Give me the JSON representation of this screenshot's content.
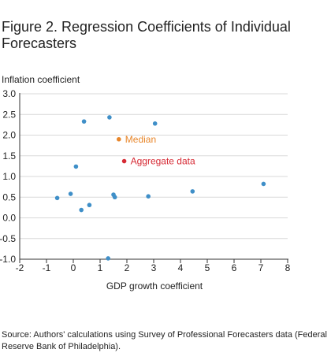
{
  "figure": {
    "title": "Figure 2. Regression Coefficients of Individual Forecasters",
    "source": "Source: Authors' calculations using Survey of Professional Forecasters data (Federal Reserve Bank of Philadelphia)."
  },
  "chart_data": {
    "type": "scatter",
    "xlabel": "GDP growth coefficient",
    "ylabel": "Inflation coefficient",
    "xlim": [
      -2,
      8
    ],
    "ylim": [
      -1.0,
      3.0
    ],
    "xticks": [
      -2,
      -1,
      0,
      1,
      2,
      3,
      4,
      5,
      6,
      7,
      8
    ],
    "yticks": [
      "3.0",
      "2.5",
      "2.0",
      "1.5",
      "1.0",
      "0.5",
      "0.0",
      "-0.5",
      "-1.0"
    ],
    "grid": true,
    "series": [
      {
        "color": "#3f8fc8",
        "points": [
          {
            "x": -0.6,
            "y": 0.48
          },
          {
            "x": -0.1,
            "y": 0.58
          },
          {
            "x": 0.1,
            "y": 1.24
          },
          {
            "x": 0.3,
            "y": 0.19
          },
          {
            "x": 0.4,
            "y": 2.33
          },
          {
            "x": 0.6,
            "y": 0.31
          },
          {
            "x": 1.3,
            "y": -0.98
          },
          {
            "x": 1.35,
            "y": 2.43
          },
          {
            "x": 1.5,
            "y": 0.56
          },
          {
            "x": 1.55,
            "y": 0.5
          },
          {
            "x": 2.8,
            "y": 0.52
          },
          {
            "x": 3.05,
            "y": 2.28
          },
          {
            "x": 4.45,
            "y": 0.64
          },
          {
            "x": 7.1,
            "y": 0.82
          }
        ]
      },
      {
        "name": "Median",
        "color": "#e8862a",
        "points": [
          {
            "x": 1.7,
            "y": 1.9
          }
        ]
      },
      {
        "name": "Aggregate data",
        "color": "#d62b35",
        "points": [
          {
            "x": 1.9,
            "y": 1.37
          }
        ]
      }
    ]
  }
}
